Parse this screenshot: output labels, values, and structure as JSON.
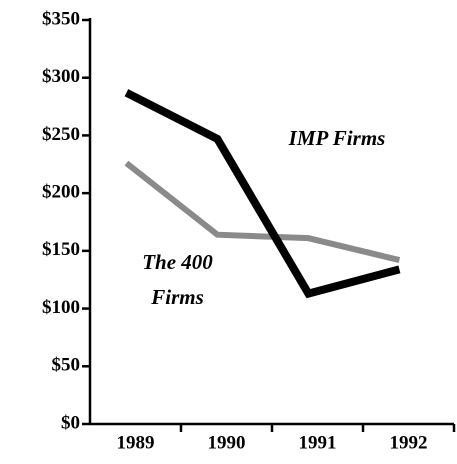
{
  "chart_data": {
    "type": "line",
    "categories": [
      "1989",
      "1990",
      "1991",
      "1992"
    ],
    "series": [
      {
        "name": "IMP Firms",
        "color": "#000000",
        "values": [
          287,
          247,
          113,
          134
        ]
      },
      {
        "name": "The 400 Firms",
        "color": "#8a8a8a",
        "values": [
          226,
          164,
          161,
          142
        ]
      }
    ],
    "ylim": [
      0,
      350
    ],
    "yticks": [
      {
        "value": 0,
        "label": "$0"
      },
      {
        "value": 50,
        "label": "$50"
      },
      {
        "value": 100,
        "label": "$100"
      },
      {
        "value": 150,
        "label": "$150"
      },
      {
        "value": 200,
        "label": "$200"
      },
      {
        "value": 250,
        "label": "$250"
      },
      {
        "value": 300,
        "label": "$300"
      },
      {
        "value": 350,
        "label": "$350"
      }
    ],
    "grid": false
  }
}
